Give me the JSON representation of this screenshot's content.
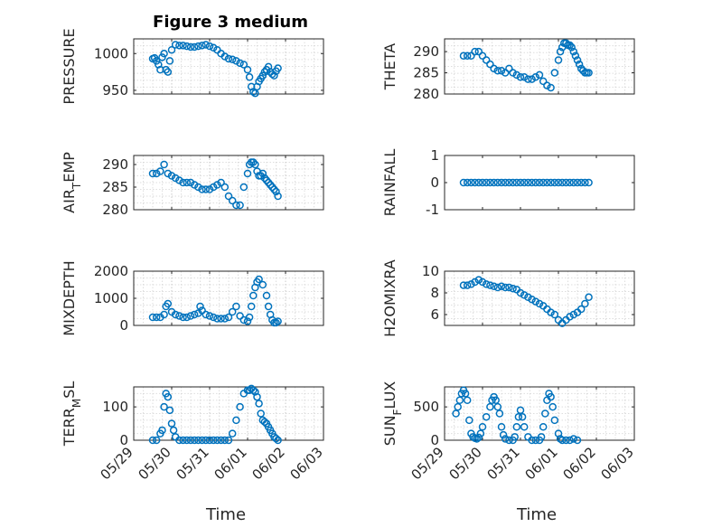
{
  "title": "Figure 3 medium",
  "accent_color": "#0072BD",
  "chart_data": [
    {
      "type": "scatter",
      "ylabel": "PRESSURE",
      "xlim": [
        "05/29",
        "06/03"
      ],
      "xticks": [
        "05/29",
        "05/30",
        "05/31",
        "06/01",
        "06/02",
        "06/03"
      ],
      "ylim": [
        945,
        1020
      ],
      "yticks": [
        950,
        1000
      ],
      "grid": true,
      "x": [
        0.5,
        0.55,
        0.6,
        0.65,
        0.7,
        0.75,
        0.8,
        0.85,
        0.9,
        0.95,
        1.0,
        1.1,
        1.2,
        1.3,
        1.4,
        1.5,
        1.6,
        1.7,
        1.8,
        1.9,
        2.0,
        2.1,
        2.2,
        2.3,
        2.4,
        2.5,
        2.6,
        2.7,
        2.8,
        2.9,
        3.0,
        3.05,
        3.1,
        3.15,
        3.2,
        3.25,
        3.3,
        3.35,
        3.4,
        3.45,
        3.5,
        3.55,
        3.6,
        3.65,
        3.7,
        3.75,
        3.8
      ],
      "y": [
        993,
        994,
        990,
        985,
        978,
        995,
        1000,
        978,
        975,
        990,
        1005,
        1012,
        1011,
        1011,
        1010,
        1009,
        1009,
        1010,
        1011,
        1012,
        1010,
        1008,
        1005,
        1000,
        996,
        993,
        992,
        990,
        987,
        985,
        978,
        968,
        955,
        948,
        946,
        955,
        962,
        966,
        970,
        975,
        978,
        982,
        975,
        972,
        970,
        976,
        980
      ]
    },
    {
      "type": "scatter",
      "ylabel": "THETA",
      "xlim": [
        "05/29",
        "06/03"
      ],
      "ylim": [
        280,
        293
      ],
      "yticks": [
        280,
        285,
        290
      ],
      "grid": true,
      "x": [
        0.5,
        0.6,
        0.7,
        0.8,
        0.9,
        1.0,
        1.1,
        1.2,
        1.3,
        1.4,
        1.5,
        1.6,
        1.7,
        1.8,
        1.9,
        2.0,
        2.1,
        2.2,
        2.3,
        2.4,
        2.5,
        2.6,
        2.7,
        2.8,
        2.9,
        3.0,
        3.05,
        3.1,
        3.15,
        3.2,
        3.25,
        3.3,
        3.35,
        3.4,
        3.45,
        3.5,
        3.55,
        3.6,
        3.65,
        3.7,
        3.75,
        3.8
      ],
      "y": [
        289,
        289,
        289,
        290,
        290,
        289,
        288,
        287,
        286,
        285.5,
        285.5,
        285,
        286,
        285,
        284.5,
        284,
        284,
        283.5,
        283.5,
        284,
        284.5,
        283,
        282,
        281.5,
        285,
        288,
        290,
        291,
        292,
        292,
        291.5,
        291.5,
        291,
        290,
        289,
        288,
        287,
        286,
        285.5,
        285,
        285,
        285
      ]
    },
    {
      "type": "scatter",
      "ylabel": "AIR_TEMP",
      "xlim": [
        "05/29",
        "06/03"
      ],
      "ylim": [
        280,
        292
      ],
      "yticks": [
        280,
        285,
        290
      ],
      "grid": true,
      "x": [
        0.5,
        0.6,
        0.7,
        0.8,
        0.9,
        1.0,
        1.1,
        1.2,
        1.3,
        1.4,
        1.5,
        1.6,
        1.7,
        1.8,
        1.9,
        2.0,
        2.1,
        2.2,
        2.3,
        2.4,
        2.5,
        2.6,
        2.7,
        2.8,
        2.9,
        3.0,
        3.05,
        3.1,
        3.15,
        3.2,
        3.25,
        3.3,
        3.35,
        3.4,
        3.45,
        3.5,
        3.55,
        3.6,
        3.65,
        3.7,
        3.75,
        3.8
      ],
      "y": [
        288,
        288,
        288.5,
        290,
        288,
        287.5,
        287,
        286.5,
        286,
        286,
        286,
        285.5,
        285,
        284.5,
        284.5,
        284.5,
        285,
        285.5,
        286,
        285,
        283,
        282,
        281,
        281,
        285,
        288,
        290,
        290.5,
        290.5,
        290,
        288.5,
        287.5,
        287.5,
        288,
        287,
        286.5,
        286,
        285.5,
        285,
        284.5,
        284,
        283
      ]
    },
    {
      "type": "scatter",
      "ylabel": "RAINFALL",
      "xlim": [
        "05/29",
        "06/03"
      ],
      "ylim": [
        -1,
        1
      ],
      "yticks": [
        -1,
        0,
        1
      ],
      "grid": false,
      "x": [
        0.5,
        0.6,
        0.7,
        0.8,
        0.9,
        1.0,
        1.1,
        1.2,
        1.3,
        1.4,
        1.5,
        1.6,
        1.7,
        1.8,
        1.9,
        2.0,
        2.1,
        2.2,
        2.3,
        2.4,
        2.5,
        2.6,
        2.7,
        2.8,
        2.9,
        3.0,
        3.1,
        3.2,
        3.3,
        3.4,
        3.5,
        3.6,
        3.7,
        3.8
      ],
      "y": [
        0,
        0,
        0,
        0,
        0,
        0,
        0,
        0,
        0,
        0,
        0,
        0,
        0,
        0,
        0,
        0,
        0,
        0,
        0,
        0,
        0,
        0,
        0,
        0,
        0,
        0,
        0,
        0,
        0,
        0,
        0,
        0,
        0,
        0
      ]
    },
    {
      "type": "scatter",
      "ylabel": "MIXDEPTH",
      "xlim": [
        "05/29",
        "06/03"
      ],
      "ylim": [
        0,
        2000
      ],
      "yticks": [
        0,
        1000,
        2000
      ],
      "grid": true,
      "x": [
        0.5,
        0.6,
        0.7,
        0.8,
        0.85,
        0.9,
        1.0,
        1.1,
        1.2,
        1.3,
        1.4,
        1.5,
        1.6,
        1.7,
        1.75,
        1.8,
        1.9,
        2.0,
        2.1,
        2.2,
        2.3,
        2.4,
        2.5,
        2.6,
        2.7,
        2.8,
        2.9,
        3.0,
        3.05,
        3.1,
        3.15,
        3.2,
        3.25,
        3.3,
        3.4,
        3.5,
        3.55,
        3.6,
        3.65,
        3.7,
        3.75,
        3.8
      ],
      "y": [
        300,
        300,
        300,
        400,
        700,
        800,
        500,
        400,
        350,
        300,
        300,
        350,
        400,
        450,
        700,
        550,
        400,
        350,
        300,
        250,
        250,
        250,
        300,
        500,
        700,
        350,
        200,
        150,
        300,
        700,
        1100,
        1400,
        1600,
        1700,
        1500,
        1100,
        700,
        400,
        200,
        100,
        100,
        150
      ]
    },
    {
      "type": "scatter",
      "ylabel": "H2OMIXRA",
      "xlim": [
        "05/29",
        "06/03"
      ],
      "ylim": [
        5,
        10
      ],
      "yticks": [
        6,
        8,
        10
      ],
      "grid": true,
      "x": [
        0.5,
        0.6,
        0.7,
        0.8,
        0.9,
        1.0,
        1.1,
        1.2,
        1.3,
        1.4,
        1.5,
        1.6,
        1.7,
        1.8,
        1.9,
        2.0,
        2.1,
        2.2,
        2.3,
        2.4,
        2.5,
        2.6,
        2.7,
        2.8,
        2.9,
        3.0,
        3.1,
        3.2,
        3.3,
        3.4,
        3.5,
        3.6,
        3.7,
        3.8
      ],
      "y": [
        8.7,
        8.7,
        8.8,
        9.0,
        9.2,
        9.0,
        8.8,
        8.7,
        8.6,
        8.5,
        8.6,
        8.5,
        8.5,
        8.4,
        8.3,
        8.0,
        7.8,
        7.6,
        7.4,
        7.2,
        7.0,
        6.8,
        6.5,
        6.2,
        6.0,
        5.5,
        5.2,
        5.5,
        5.8,
        6.0,
        6.2,
        6.5,
        7.0,
        7.6
      ]
    },
    {
      "type": "scatter",
      "ylabel": "TERR_MSL",
      "xlim": [
        "05/29",
        "06/03"
      ],
      "ylim": [
        0,
        160
      ],
      "yticks": [
        0,
        100
      ],
      "grid": true,
      "x": [
        0.5,
        0.6,
        0.7,
        0.75,
        0.8,
        0.85,
        0.9,
        0.95,
        1.0,
        1.05,
        1.1,
        1.2,
        1.3,
        1.4,
        1.5,
        1.6,
        1.7,
        1.8,
        1.9,
        2.0,
        2.1,
        2.2,
        2.3,
        2.4,
        2.5,
        2.6,
        2.7,
        2.8,
        2.9,
        3.0,
        3.05,
        3.1,
        3.15,
        3.2,
        3.25,
        3.3,
        3.35,
        3.4,
        3.45,
        3.5,
        3.55,
        3.6,
        3.65,
        3.7,
        3.75,
        3.8
      ],
      "y": [
        0,
        0,
        20,
        30,
        100,
        140,
        130,
        90,
        50,
        30,
        10,
        0,
        0,
        0,
        0,
        0,
        0,
        0,
        0,
        0,
        0,
        0,
        0,
        0,
        0,
        20,
        60,
        100,
        140,
        150,
        150,
        155,
        150,
        145,
        130,
        110,
        80,
        60,
        55,
        50,
        40,
        30,
        20,
        10,
        5,
        0
      ]
    },
    {
      "type": "scatter",
      "ylabel": "SUN_FLUX",
      "xlim": [
        "05/29",
        "06/03"
      ],
      "ylim": [
        0,
        800
      ],
      "yticks": [
        0,
        500
      ],
      "grid": true,
      "x": [
        0.3,
        0.35,
        0.4,
        0.45,
        0.5,
        0.55,
        0.6,
        0.65,
        0.7,
        0.75,
        0.8,
        0.85,
        0.9,
        0.95,
        1.0,
        1.1,
        1.2,
        1.25,
        1.3,
        1.35,
        1.4,
        1.45,
        1.5,
        1.55,
        1.6,
        1.7,
        1.8,
        1.85,
        1.9,
        1.95,
        2.0,
        2.05,
        2.1,
        2.2,
        2.3,
        2.4,
        2.5,
        2.55,
        2.6,
        2.65,
        2.7,
        2.75,
        2.8,
        2.85,
        2.9,
        3.0,
        3.05,
        3.1,
        3.2,
        3.3,
        3.4,
        3.5
      ],
      "y": [
        400,
        500,
        600,
        700,
        750,
        700,
        600,
        300,
        100,
        50,
        30,
        20,
        40,
        100,
        200,
        350,
        500,
        600,
        650,
        600,
        500,
        400,
        200,
        80,
        20,
        0,
        0,
        50,
        200,
        350,
        450,
        350,
        200,
        50,
        0,
        0,
        0,
        50,
        200,
        400,
        600,
        700,
        650,
        500,
        300,
        100,
        20,
        0,
        0,
        0,
        20,
        0
      ]
    }
  ],
  "xlabel": "Time"
}
